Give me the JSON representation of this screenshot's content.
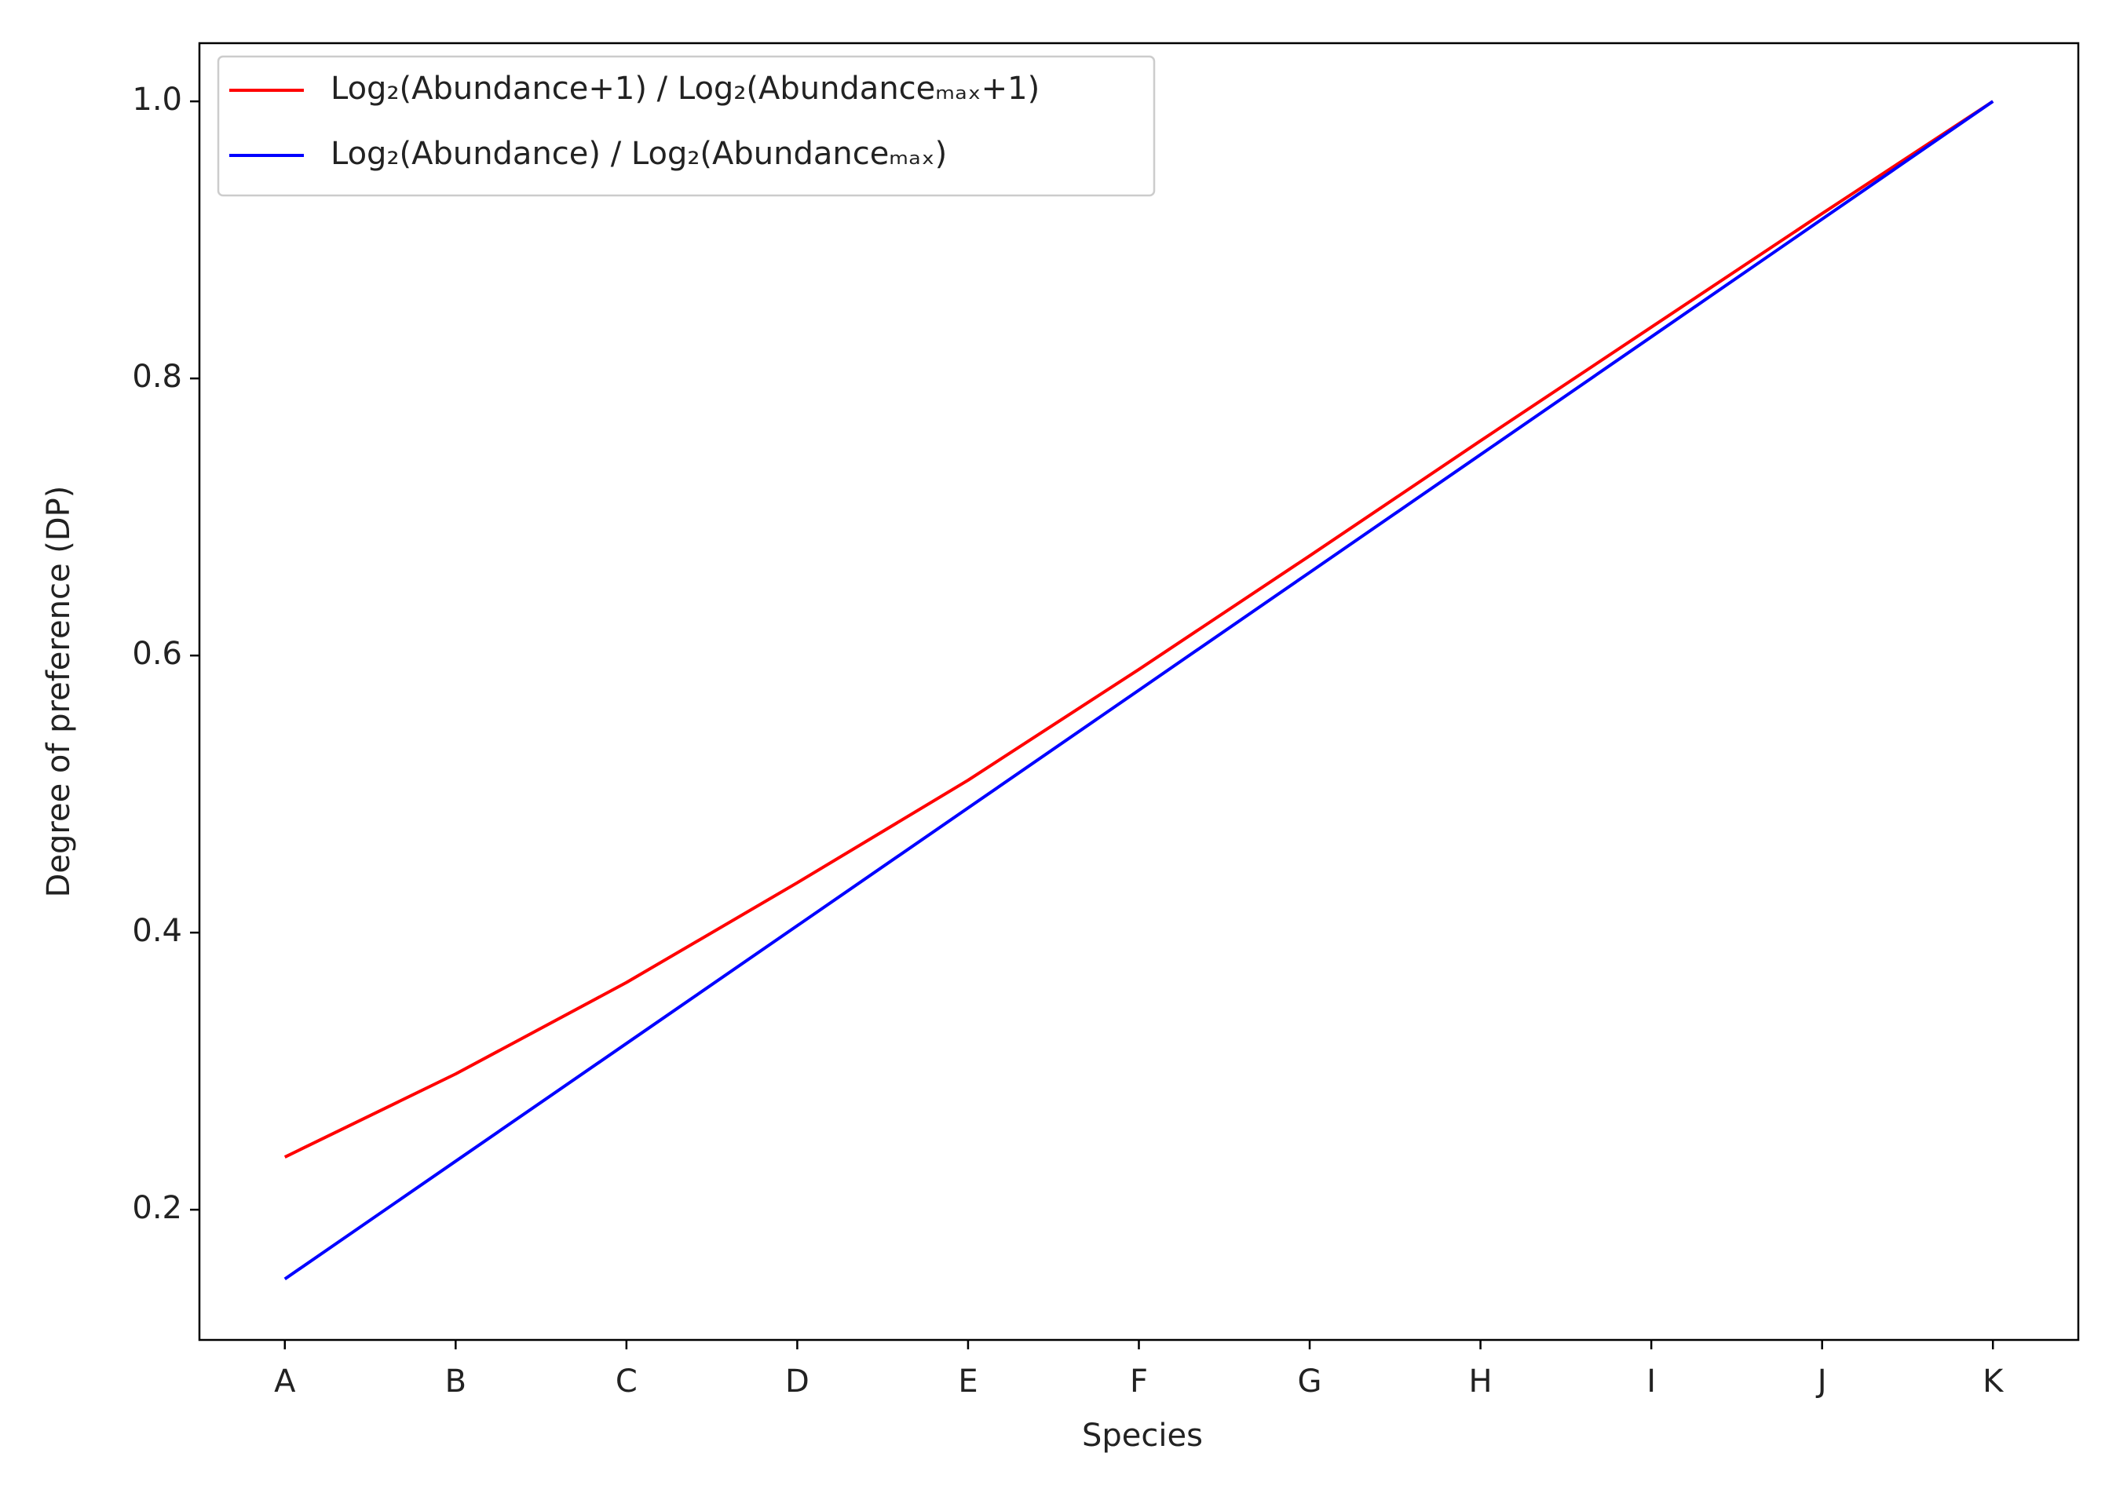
{
  "chart_data": {
    "type": "line",
    "x_label": "Species",
    "y_label": "Degree of preference (DP)",
    "categories": [
      "A",
      "B",
      "C",
      "D",
      "E",
      "F",
      "G",
      "H",
      "I",
      "J",
      "K"
    ],
    "series": [
      {
        "name": "Log₂(Abundance+1) / Log₂(Abundanceₘₐₓ+1)",
        "color": "#ff0000",
        "values": [
          0.238,
          0.298,
          0.364,
          0.436,
          0.51,
          0.59,
          0.672,
          0.755,
          0.837,
          0.919,
          1.0
        ]
      },
      {
        "name": "Log₂(Abundance) / Log₂(Abundanceₘₐₓ)",
        "color": "#0000ff",
        "values": [
          0.15,
          0.235,
          0.32,
          0.405,
          0.49,
          0.575,
          0.66,
          0.745,
          0.83,
          0.915,
          1.0
        ]
      }
    ],
    "ylim": [
      0.106,
      1.042
    ],
    "yticks": [
      {
        "value": 0.2,
        "label": "0.2"
      },
      {
        "value": 0.4,
        "label": "0.4"
      },
      {
        "value": 0.6,
        "label": "0.6"
      },
      {
        "value": 0.8,
        "label": "0.8"
      },
      {
        "value": 1.0,
        "label": "1.0"
      }
    ],
    "grid": false,
    "legend": "upper left"
  }
}
